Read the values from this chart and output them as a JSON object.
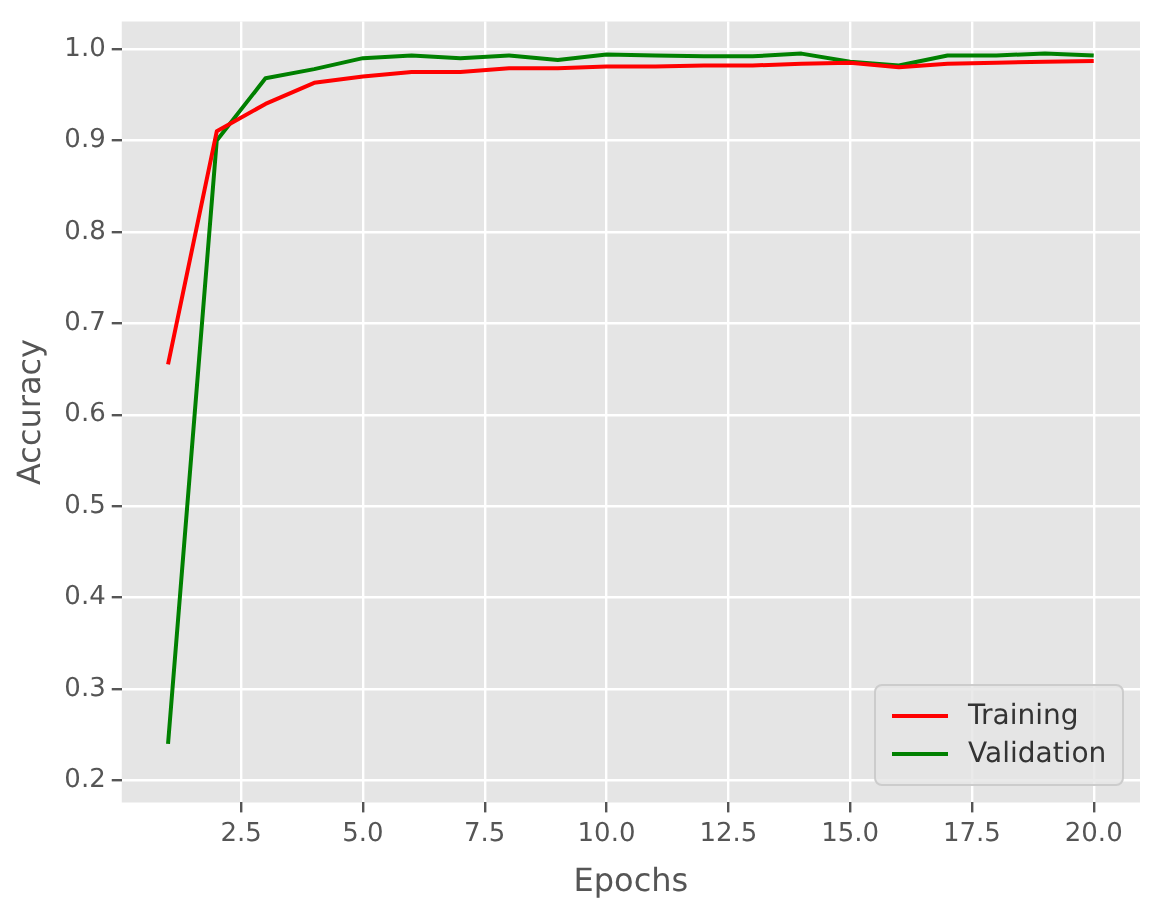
{
  "chart_data": {
    "type": "line",
    "xlabel": "Epochs",
    "ylabel": "Accuracy",
    "x": [
      1,
      2,
      3,
      4,
      5,
      6,
      7,
      8,
      9,
      10,
      11,
      12,
      13,
      14,
      15,
      16,
      17,
      18,
      19,
      20
    ],
    "series": [
      {
        "name": "Training",
        "color": "#ff0000",
        "values": [
          0.655,
          0.91,
          0.94,
          0.963,
          0.97,
          0.975,
          0.975,
          0.979,
          0.979,
          0.981,
          0.981,
          0.982,
          0.982,
          0.984,
          0.985,
          0.98,
          0.984,
          0.985,
          0.986,
          0.987
        ]
      },
      {
        "name": "Validation",
        "color": "#008000",
        "values": [
          0.24,
          0.9,
          0.968,
          0.978,
          0.99,
          0.993,
          0.99,
          0.993,
          0.988,
          0.994,
          0.993,
          0.992,
          0.992,
          0.995,
          0.986,
          0.982,
          0.993,
          0.993,
          0.995,
          0.993
        ]
      }
    ],
    "xlim": [
      0.05,
      20.95
    ],
    "xticks": [
      {
        "value": 2.5,
        "label": "2.5"
      },
      {
        "value": 5,
        "label": "5.0"
      },
      {
        "value": 7.5,
        "label": "7.5"
      },
      {
        "value": 10,
        "label": "10.0"
      },
      {
        "value": 12.5,
        "label": "12.5"
      },
      {
        "value": 15,
        "label": "15.0"
      },
      {
        "value": 17.5,
        "label": "17.5"
      },
      {
        "value": 20,
        "label": "20.0"
      }
    ],
    "ylim": [
      0.176,
      1.03
    ],
    "yticks": [
      0.2,
      0.3,
      0.4,
      0.5,
      0.6,
      0.7,
      0.8,
      0.9,
      {
        "value": 1,
        "label": "1.0"
      }
    ],
    "grid": true,
    "legend": "bottom right",
    "marker": "none",
    "line_style": "solid"
  }
}
